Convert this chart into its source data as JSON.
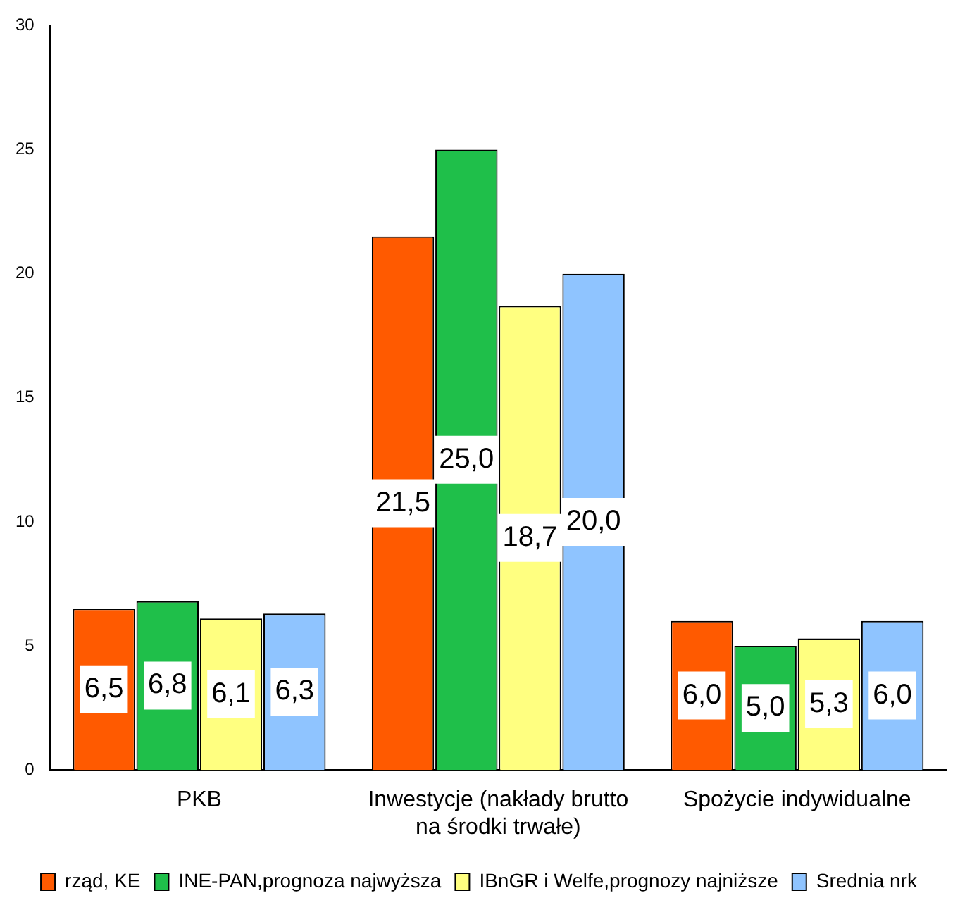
{
  "chart_data": {
    "type": "bar",
    "categories": [
      "PKB",
      "Inwestycje (nakłady brutto na środki trwałe)",
      "Spożycie indywidualne"
    ],
    "series": [
      {
        "name": "rząd, KE",
        "color": "#ff5a00",
        "values": [
          6.5,
          21.5,
          6.0
        ],
        "value_labels": [
          "6,5",
          "21,5",
          "6,0"
        ]
      },
      {
        "name": "INE-PAN,prognoza najwyższa",
        "color": "#1fbf4a",
        "values": [
          6.8,
          25.0,
          5.0
        ],
        "value_labels": [
          "6,8",
          "25,0",
          "5,0"
        ]
      },
      {
        "name": "IBnGR i Welfe,prognozy najniższe",
        "color": "#ffff80",
        "values": [
          6.1,
          18.7,
          5.3
        ],
        "value_labels": [
          "6,1",
          "18,7",
          "5,3"
        ]
      },
      {
        "name": "Srednia nrk",
        "color": "#8fc4ff",
        "values": [
          6.3,
          20.0,
          6.0
        ],
        "value_labels": [
          "6,3",
          "20,0",
          "6,0"
        ]
      }
    ],
    "ylim": [
      0,
      30
    ],
    "yticks": [
      0,
      5,
      10,
      15,
      20,
      25,
      30
    ],
    "grid": false,
    "legend": "bottom"
  }
}
